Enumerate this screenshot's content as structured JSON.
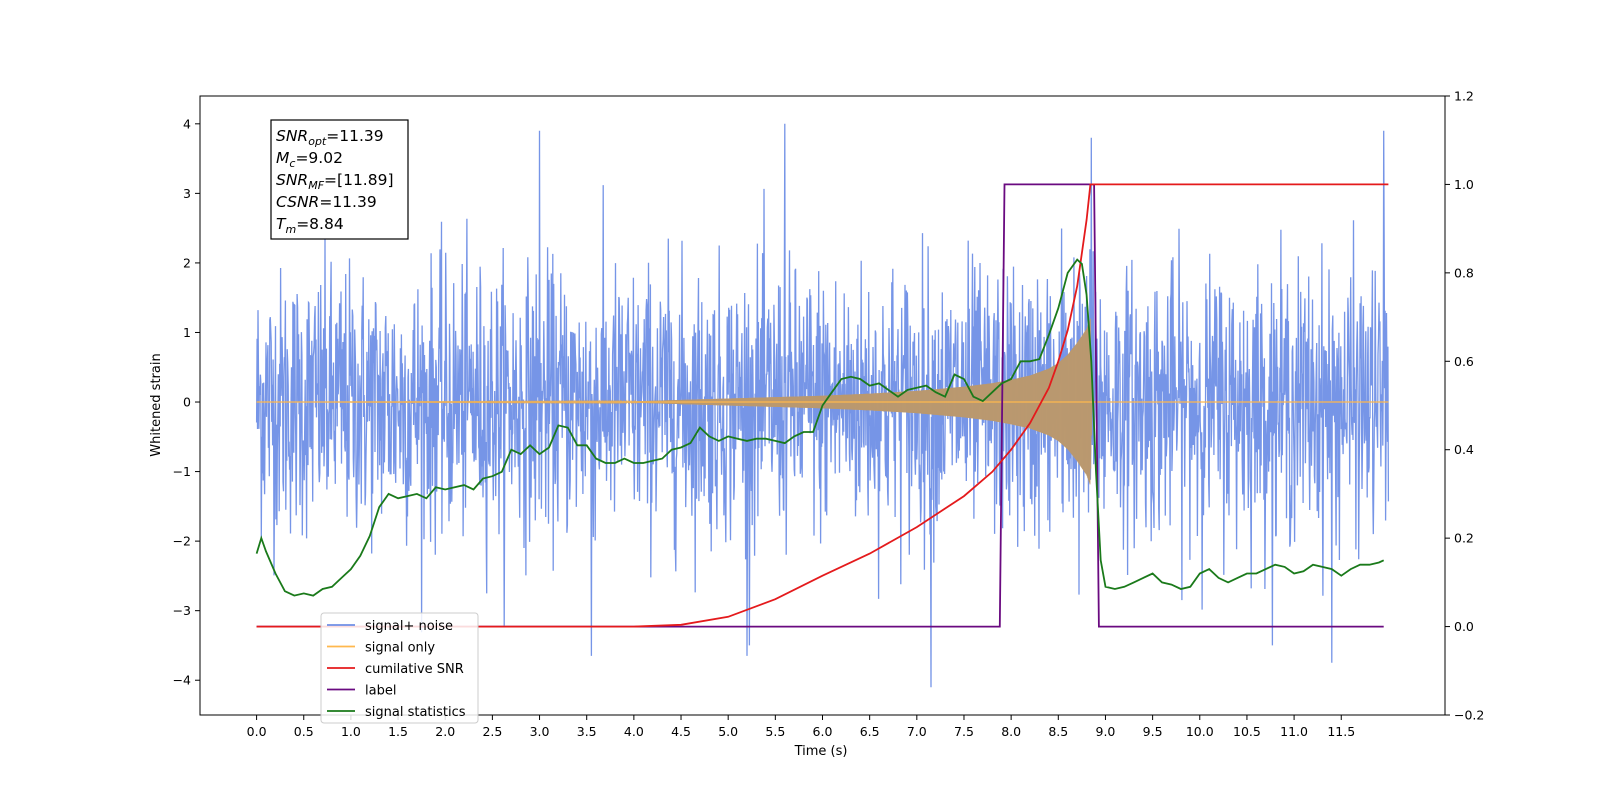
{
  "chart_data": {
    "type": "line",
    "xlabel": "Time (s)",
    "ylabel": "Whitened strain",
    "xlim": [
      -0.6,
      12.6
    ],
    "ylim": [
      -4.5,
      4.4
    ],
    "y2lim": [
      -0.2,
      1.2
    ],
    "x_ticks": [
      0.0,
      0.5,
      1.0,
      1.5,
      2.0,
      2.5,
      3.0,
      3.5,
      4.0,
      4.5,
      5.0,
      5.5,
      6.0,
      6.5,
      7.0,
      7.5,
      8.0,
      8.5,
      9.0,
      9.5,
      10.0,
      10.5,
      11.0,
      11.5
    ],
    "x_tick_labels": [
      "0.0",
      "0.5",
      "1.0",
      "1.5",
      "2.0",
      "2.5",
      "3.0",
      "3.5",
      "4.0",
      "4.5",
      "5.0",
      "5.5",
      "6.0",
      "6.5",
      "7.0",
      "7.5",
      "8.0",
      "8.5",
      "9.0",
      "9.5",
      "10.0",
      "10.5",
      "11.0",
      "11.5"
    ],
    "y_ticks": [
      4,
      3,
      2,
      1,
      0,
      -1,
      -2,
      -3,
      -4
    ],
    "y_tick_labels": [
      "4",
      "3",
      "2",
      "1",
      "0",
      "−1",
      "−2",
      "−3",
      "−4"
    ],
    "y2_ticks": [
      1.2,
      1.0,
      0.8,
      0.6,
      0.4,
      0.2,
      0.0,
      -0.2
    ],
    "y2_tick_labels": [
      "1.2",
      "1.0",
      "0.8",
      "0.6",
      "0.4",
      "0.2",
      "0.0",
      "−0.2"
    ],
    "grid": false,
    "legend_position": "lower-left",
    "annotation": {
      "lines": [
        {
          "main": "SNR",
          "sub": "opt",
          "rest": "=11.39"
        },
        {
          "main": "M",
          "sub": "c",
          "rest": "=9.02"
        },
        {
          "main": "SNR",
          "sub": "MF",
          "rest": "=[11.89]"
        },
        {
          "main": "CSNR",
          "sub": "",
          "rest": "=11.39"
        },
        {
          "main": "T",
          "sub": "m",
          "rest": "=8.84"
        }
      ]
    },
    "series": [
      {
        "name": "signal+ noise",
        "color": "#6f8fe6",
        "axis": "left",
        "note_values": "dense noise trace; amplitude envelope (std ~ 0.95, extremes shown)",
        "x_range": [
          0.0,
          12.0
        ],
        "peaks_max": [
          [
            3.0,
            3.9
          ],
          [
            5.6,
            4.0
          ],
          [
            8.85,
            3.8
          ],
          [
            11.95,
            3.9
          ]
        ],
        "peaks_min": [
          [
            3.55,
            -3.65
          ],
          [
            5.2,
            -3.65
          ],
          [
            7.15,
            -4.1
          ],
          [
            11.4,
            -3.75
          ]
        ]
      },
      {
        "name": "signal only",
        "color": "#ffb84d",
        "axis": "left",
        "envelope_x": [
          0.0,
          4.0,
          5.0,
          6.0,
          6.5,
          7.0,
          7.5,
          7.8,
          8.0,
          8.2,
          8.4,
          8.5,
          8.6,
          8.7,
          8.8,
          8.84,
          8.86,
          12.0
        ],
        "envelope_y": [
          0.0,
          0.01,
          0.05,
          0.09,
          0.12,
          0.16,
          0.22,
          0.27,
          0.32,
          0.38,
          0.48,
          0.56,
          0.68,
          0.85,
          1.05,
          1.2,
          0.0,
          0.0
        ]
      },
      {
        "name": "cumilative SNR",
        "color": "#e41a1c",
        "axis": "right",
        "x": [
          0.0,
          4.0,
          4.5,
          5.0,
          5.5,
          6.0,
          6.5,
          7.0,
          7.5,
          7.8,
          8.0,
          8.2,
          8.4,
          8.5,
          8.6,
          8.7,
          8.8,
          8.84,
          8.86,
          12.0
        ],
        "y": [
          0.0,
          0.0,
          0.004,
          0.022,
          0.062,
          0.115,
          0.165,
          0.225,
          0.295,
          0.35,
          0.4,
          0.46,
          0.54,
          0.6,
          0.67,
          0.77,
          0.92,
          1.0,
          1.0,
          1.0
        ]
      },
      {
        "name": "label",
        "color": "#6a0a80",
        "axis": "right",
        "x": [
          0.0,
          7.88,
          7.93,
          8.88,
          8.93,
          11.95
        ],
        "y": [
          0.0,
          0.0,
          1.0,
          1.0,
          0.0,
          0.0
        ]
      },
      {
        "name": "signal statistics",
        "color": "#1a7a1a",
        "axis": "right",
        "x": [
          0.0,
          0.05,
          0.1,
          0.2,
          0.3,
          0.4,
          0.5,
          0.6,
          0.7,
          0.8,
          0.9,
          1.0,
          1.1,
          1.2,
          1.3,
          1.4,
          1.5,
          1.6,
          1.7,
          1.8,
          1.9,
          2.0,
          2.1,
          2.2,
          2.3,
          2.4,
          2.5,
          2.6,
          2.7,
          2.8,
          2.9,
          3.0,
          3.1,
          3.2,
          3.3,
          3.4,
          3.5,
          3.6,
          3.7,
          3.8,
          3.9,
          4.0,
          4.1,
          4.2,
          4.3,
          4.4,
          4.5,
          4.6,
          4.7,
          4.8,
          4.9,
          5.0,
          5.1,
          5.2,
          5.3,
          5.4,
          5.5,
          5.6,
          5.7,
          5.8,
          5.9,
          6.0,
          6.1,
          6.2,
          6.3,
          6.4,
          6.5,
          6.6,
          6.7,
          6.8,
          6.9,
          7.0,
          7.1,
          7.2,
          7.3,
          7.4,
          7.5,
          7.6,
          7.7,
          7.8,
          7.9,
          8.0,
          8.1,
          8.2,
          8.3,
          8.4,
          8.5,
          8.6,
          8.7,
          8.75,
          8.8,
          8.85,
          8.9,
          8.95,
          9.0,
          9.1,
          9.2,
          9.3,
          9.4,
          9.5,
          9.6,
          9.7,
          9.8,
          9.9,
          10.0,
          10.1,
          10.2,
          10.3,
          10.4,
          10.5,
          10.6,
          10.7,
          10.8,
          10.9,
          11.0,
          11.1,
          11.2,
          11.3,
          11.4,
          11.5,
          11.6,
          11.7,
          11.8,
          11.9,
          11.95
        ],
        "y": [
          0.165,
          0.2,
          0.17,
          0.12,
          0.08,
          0.07,
          0.075,
          0.07,
          0.085,
          0.09,
          0.11,
          0.13,
          0.16,
          0.205,
          0.27,
          0.3,
          0.29,
          0.295,
          0.3,
          0.29,
          0.315,
          0.31,
          0.315,
          0.32,
          0.31,
          0.335,
          0.34,
          0.35,
          0.4,
          0.39,
          0.41,
          0.39,
          0.405,
          0.455,
          0.45,
          0.41,
          0.41,
          0.38,
          0.37,
          0.37,
          0.38,
          0.37,
          0.37,
          0.375,
          0.38,
          0.4,
          0.405,
          0.415,
          0.45,
          0.43,
          0.42,
          0.43,
          0.425,
          0.42,
          0.425,
          0.425,
          0.42,
          0.415,
          0.43,
          0.44,
          0.44,
          0.5,
          0.53,
          0.56,
          0.565,
          0.56,
          0.545,
          0.55,
          0.535,
          0.52,
          0.535,
          0.54,
          0.545,
          0.53,
          0.52,
          0.57,
          0.56,
          0.52,
          0.51,
          0.53,
          0.55,
          0.56,
          0.6,
          0.6,
          0.605,
          0.66,
          0.72,
          0.8,
          0.83,
          0.82,
          0.75,
          0.6,
          0.35,
          0.15,
          0.09,
          0.085,
          0.09,
          0.1,
          0.11,
          0.12,
          0.1,
          0.095,
          0.085,
          0.09,
          0.12,
          0.13,
          0.11,
          0.1,
          0.11,
          0.12,
          0.12,
          0.13,
          0.14,
          0.135,
          0.12,
          0.125,
          0.14,
          0.135,
          0.13,
          0.115,
          0.13,
          0.14,
          0.14,
          0.145,
          0.15
        ]
      }
    ]
  }
}
